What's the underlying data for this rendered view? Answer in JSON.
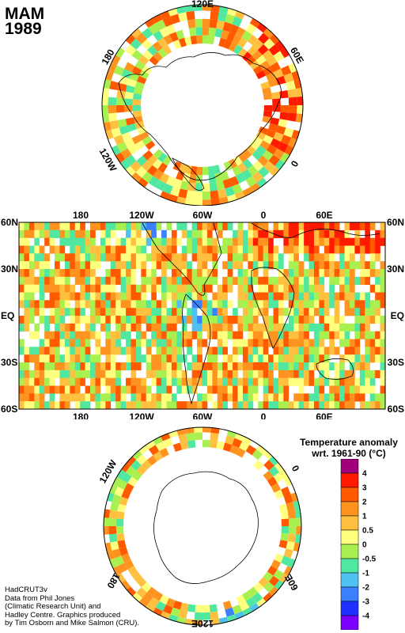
{
  "title": {
    "season": "MAM",
    "year": "1989"
  },
  "north_polar": {
    "longitude_labels": [
      "120E",
      "60E",
      "0",
      "120W",
      "180"
    ]
  },
  "equirect_map": {
    "top_longitude_labels": [
      "180",
      "120W",
      "60W",
      "0",
      "60E"
    ],
    "bottom_longitude_labels": [
      "180",
      "120W",
      "60W",
      "0",
      "60E"
    ],
    "latitude_labels": [
      "60N",
      "30N",
      "EQ",
      "30S",
      "60S"
    ]
  },
  "south_polar": {
    "longitude_labels": [
      "120W",
      "0",
      "60E",
      "120E",
      "180"
    ]
  },
  "legend": {
    "title_line1": "Temperature anomaly",
    "title_line2": "wrt. 1961-90  (°C)",
    "labels": [
      "4",
      "3",
      "2",
      "1",
      "0.5",
      "0",
      "-0.5",
      "-1",
      "-2",
      "-3",
      "-4"
    ],
    "colors": [
      "#a0007a",
      "#ff1a00",
      "#ff5a00",
      "#ff9320",
      "#ffc040",
      "#ffff80",
      "#a8f050",
      "#50e8a0",
      "#50c0f0",
      "#3a80ff",
      "#2030ff",
      "#7a00ff"
    ]
  },
  "credits": {
    "line1": "HadCRUT3v",
    "line2": "Data from Phil Jones",
    "line3": "(Climatic Research Unit) and",
    "line4": "Hadley Centre.  Graphics produced",
    "line5": "by Tim Osborn and Mike Salmon (CRU)."
  }
}
